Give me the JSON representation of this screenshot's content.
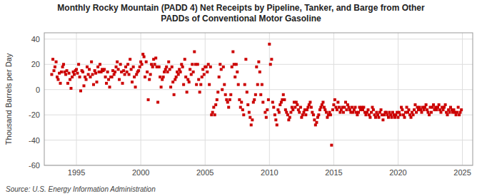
{
  "chart_data": {
    "type": "scatter",
    "title": "Monthly Rocky Mountain (PADD 4) Net Receipts by Pipeline, Tanker, and Barge from Other\nPADDs of Conventional Motor Gasoline",
    "ylabel": "Thousand Barrels per Day",
    "source": "Source: U.S. Energy Information Administration",
    "color": "#CC0000",
    "marker": "square",
    "grid": true,
    "xlim": [
      1992.5,
      2025.8
    ],
    "xticks": [
      1995,
      2000,
      2005,
      2010,
      2015,
      2020,
      2025
    ],
    "ylim": [
      -60,
      45
    ],
    "yticks": [
      -60,
      -40,
      -20,
      0,
      20,
      40
    ],
    "x": [
      1993.08,
      1993.17,
      1993.25,
      1993.33,
      1993.42,
      1993.5,
      1993.58,
      1993.67,
      1993.75,
      1993.83,
      1993.92,
      1994.0,
      1994.08,
      1994.17,
      1994.25,
      1994.33,
      1994.42,
      1994.5,
      1994.58,
      1994.67,
      1994.75,
      1994.83,
      1994.92,
      1995.0,
      1995.08,
      1995.17,
      1995.25,
      1995.33,
      1995.42,
      1995.5,
      1995.58,
      1995.67,
      1995.75,
      1995.83,
      1995.92,
      1996.0,
      1996.08,
      1996.17,
      1996.25,
      1996.33,
      1996.42,
      1996.5,
      1996.58,
      1996.67,
      1996.75,
      1996.83,
      1996.92,
      1997.0,
      1997.08,
      1997.17,
      1997.25,
      1997.33,
      1997.42,
      1997.5,
      1997.58,
      1997.67,
      1997.75,
      1997.83,
      1997.92,
      1998.0,
      1998.08,
      1998.17,
      1998.25,
      1998.33,
      1998.42,
      1998.5,
      1998.58,
      1998.67,
      1998.75,
      1998.83,
      1998.92,
      1999.0,
      1999.08,
      1999.17,
      1999.25,
      1999.33,
      1999.42,
      1999.5,
      1999.58,
      1999.67,
      1999.75,
      1999.83,
      1999.92,
      2000.0,
      2000.08,
      2000.17,
      2000.25,
      2000.33,
      2000.42,
      2000.5,
      2000.58,
      2000.67,
      2000.75,
      2000.83,
      2000.92,
      2001.0,
      2001.08,
      2001.17,
      2001.25,
      2001.33,
      2001.42,
      2001.5,
      2001.58,
      2001.67,
      2001.75,
      2001.83,
      2001.92,
      2002.0,
      2002.08,
      2002.17,
      2002.25,
      2002.33,
      2002.42,
      2002.5,
      2002.58,
      2002.67,
      2002.75,
      2002.83,
      2002.92,
      2003.0,
      2003.08,
      2003.17,
      2003.25,
      2003.33,
      2003.42,
      2003.5,
      2003.58,
      2003.67,
      2003.75,
      2003.83,
      2003.92,
      2004.0,
      2004.08,
      2004.17,
      2004.25,
      2004.33,
      2004.42,
      2004.5,
      2004.58,
      2004.67,
      2004.75,
      2004.83,
      2004.92,
      2005.0,
      2005.08,
      2005.17,
      2005.25,
      2005.33,
      2005.42,
      2005.5,
      2005.58,
      2005.67,
      2005.75,
      2005.83,
      2005.92,
      2006.0,
      2006.08,
      2006.17,
      2006.25,
      2006.33,
      2006.42,
      2006.5,
      2006.58,
      2006.67,
      2006.75,
      2006.83,
      2006.92,
      2007.0,
      2007.08,
      2007.17,
      2007.25,
      2007.33,
      2007.42,
      2007.5,
      2007.58,
      2007.67,
      2007.75,
      2007.83,
      2007.92,
      2008.0,
      2008.08,
      2008.17,
      2008.25,
      2008.33,
      2008.42,
      2008.5,
      2008.58,
      2008.67,
      2008.75,
      2008.83,
      2008.92,
      2009.0,
      2009.08,
      2009.17,
      2009.25,
      2009.33,
      2009.42,
      2009.5,
      2009.67,
      2009.75,
      2009.83,
      2009.92,
      2010.0,
      2010.08,
      2010.17,
      2010.25,
      2010.33,
      2010.42,
      2010.5,
      2010.58,
      2010.67,
      2010.75,
      2010.83,
      2010.92,
      2011.0,
      2011.08,
      2011.17,
      2011.25,
      2011.33,
      2011.42,
      2011.5,
      2011.58,
      2011.67,
      2011.75,
      2011.83,
      2011.92,
      2012.0,
      2012.08,
      2012.17,
      2012.25,
      2012.33,
      2012.42,
      2012.5,
      2012.58,
      2012.67,
      2012.75,
      2012.83,
      2012.92,
      2013.0,
      2013.08,
      2013.17,
      2013.25,
      2013.33,
      2013.42,
      2013.5,
      2013.58,
      2013.67,
      2013.75,
      2013.83,
      2013.92,
      2014.0,
      2014.08,
      2014.17,
      2014.25,
      2014.33,
      2014.42,
      2014.5,
      2014.58,
      2014.67,
      2014.75,
      2014.83,
      2014.92,
      2015.0,
      2015.08,
      2015.17,
      2015.25,
      2015.33,
      2015.42,
      2015.5,
      2015.58,
      2015.67,
      2015.75,
      2015.83,
      2015.92,
      2016.0,
      2016.08,
      2016.17,
      2016.25,
      2016.33,
      2016.42,
      2016.5,
      2016.58,
      2016.67,
      2016.75,
      2016.83,
      2016.92,
      2017.0,
      2017.08,
      2017.17,
      2017.25,
      2017.33,
      2017.42,
      2017.5,
      2017.58,
      2017.67,
      2017.75,
      2017.83,
      2017.92,
      2018.0,
      2018.08,
      2018.17,
      2018.25,
      2018.33,
      2018.42,
      2018.5,
      2018.58,
      2018.67,
      2018.75,
      2018.83,
      2018.92,
      2019.0,
      2019.08,
      2019.17,
      2019.25,
      2019.33,
      2019.42,
      2019.5,
      2019.58,
      2019.67,
      2019.75,
      2019.83,
      2019.92,
      2020.0,
      2020.08,
      2020.17,
      2020.25,
      2020.33,
      2020.42,
      2020.5,
      2020.58,
      2020.67,
      2020.75,
      2020.83,
      2020.92,
      2021.0,
      2021.08,
      2021.17,
      2021.25,
      2021.33,
      2021.42,
      2021.5,
      2021.58,
      2021.67,
      2021.75,
      2021.83,
      2021.92,
      2022.0,
      2022.08,
      2022.17,
      2022.25,
      2022.33,
      2022.42,
      2022.5,
      2022.58,
      2022.67,
      2022.75,
      2022.83,
      2022.92,
      2023.0,
      2023.08,
      2023.17,
      2023.25,
      2023.33,
      2023.42,
      2023.5,
      2023.58,
      2023.67,
      2023.75,
      2023.83,
      2023.92,
      2024.0,
      2024.08,
      2024.17,
      2024.25,
      2024.33,
      2024.42,
      2024.5,
      2024.58,
      2024.67,
      2024.75,
      2024.83,
      2024.92
    ],
    "values": [
      12,
      24,
      15,
      18,
      22,
      10,
      8,
      13,
      5,
      14,
      18,
      20,
      14,
      12,
      15,
      5,
      13,
      8,
      1,
      10,
      14,
      12,
      15,
      16,
      13,
      20,
      10,
      -1,
      15,
      14,
      3,
      10,
      8,
      18,
      12,
      16,
      10,
      22,
      12,
      4,
      15,
      13,
      6,
      18,
      14,
      20,
      14,
      16,
      15,
      16,
      10,
      5,
      14,
      8,
      2,
      10,
      10,
      15,
      12,
      14,
      18,
      22,
      16,
      8,
      20,
      14,
      5,
      15,
      12,
      18,
      14,
      20,
      12,
      24,
      16,
      6,
      18,
      10,
      2,
      12,
      14,
      15,
      18,
      22,
      20,
      28,
      26,
      10,
      22,
      14,
      -8,
      8,
      12,
      20,
      18,
      24,
      20,
      25,
      18,
      -10,
      18,
      10,
      2,
      8,
      10,
      14,
      16,
      18,
      14,
      22,
      16,
      2,
      18,
      6,
      -4,
      8,
      10,
      14,
      12,
      16,
      14,
      20,
      18,
      4,
      24,
      10,
      -2,
      8,
      6,
      16,
      12,
      20,
      14,
      30,
      20,
      4,
      20,
      8,
      -2,
      4,
      10,
      16,
      12,
      18,
      18,
      14,
      20,
      4,
      18,
      -20,
      -18,
      -14,
      -20,
      -12,
      -8,
      -2,
      10,
      20,
      16,
      0,
      18,
      4,
      -4,
      -8,
      -10,
      -14,
      -8,
      -4,
      18,
      30,
      20,
      10,
      20,
      14,
      4,
      -8,
      -14,
      -10,
      -16,
      -20,
      4,
      24,
      -2,
      -12,
      -18,
      -22,
      -28,
      -24,
      -10,
      -8,
      -4,
      18,
      4,
      22,
      14,
      -4,
      4,
      -10,
      -18,
      -22,
      -16,
      -8,
      36,
      20,
      24,
      -10,
      -14,
      -20,
      -24,
      -28,
      -16,
      -18,
      -12,
      -10,
      -8,
      -4,
      -8,
      -16,
      -18,
      -20,
      -24,
      -22,
      -18,
      -14,
      -16,
      -10,
      -14,
      -10,
      -12,
      -16,
      -18,
      -14,
      -22,
      -20,
      -18,
      -16,
      -20,
      -16,
      -14,
      -12,
      -10,
      -14,
      -18,
      -20,
      -24,
      -28,
      -26,
      -22,
      -20,
      -16,
      -14,
      -12,
      -10,
      -14,
      -16,
      -18,
      -22,
      -20,
      -18,
      -20,
      -44,
      -16,
      -12,
      -8,
      -14,
      -16,
      -10,
      -14,
      -18,
      -16,
      -14,
      -18,
      -14,
      -10,
      -16,
      -12,
      -14,
      -16,
      -18,
      -14,
      -18,
      -16,
      -14,
      -18,
      -20,
      -18,
      -14,
      -16,
      -14,
      -16,
      -14,
      -18,
      -20,
      -18,
      -16,
      -20,
      -22,
      -18,
      -14,
      -16,
      -20,
      -22,
      -18,
      -20,
      -22,
      -18,
      -16,
      -20,
      -24,
      -20,
      -18,
      -18,
      -20,
      -22,
      -18,
      -20,
      -22,
      -18,
      -20,
      -22,
      -20,
      -18,
      -22,
      -18,
      -20,
      -14,
      -16,
      -20,
      -22,
      -18,
      -14,
      -18,
      -16,
      -20,
      -22,
      -18,
      -20,
      -16,
      -12,
      -18,
      -14,
      -16,
      -14,
      -16,
      -18,
      -14,
      -16,
      -14,
      -12,
      -16,
      -18,
      -20,
      -14,
      -18,
      -14,
      -12,
      -16,
      -14,
      -16,
      -14,
      -12,
      -16,
      -18,
      -14,
      -16,
      -14,
      -12,
      -18,
      -20,
      -16,
      -18,
      -14,
      -16,
      -18,
      -16,
      -18,
      -20,
      -18,
      -14,
      -20,
      -18,
      -16
    ]
  }
}
